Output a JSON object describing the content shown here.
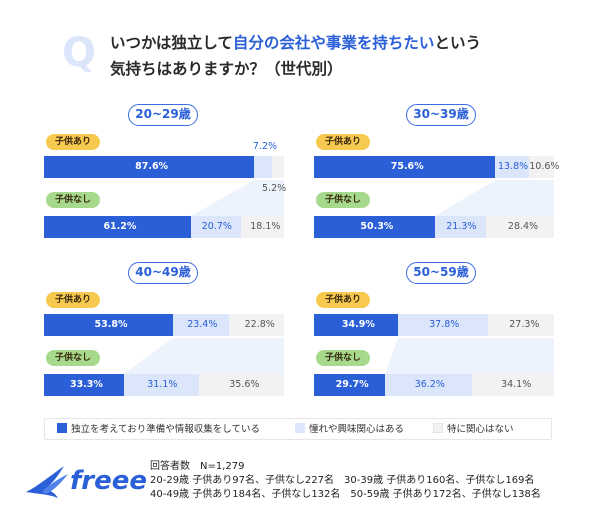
{
  "header": {
    "q_letter": "Q",
    "title_part1": "いつかは独立して",
    "title_highlight": "自分の会社や事業を持ちたい",
    "title_part2": "という",
    "title_line2": "気持ちはありますか？（世代別）"
  },
  "tags": {
    "with_children": "子供あり",
    "without_children": "子供なし"
  },
  "legend": {
    "items": [
      {
        "label": "独立を考えており準備や情報収集をしている",
        "color": "#2a5fd8"
      },
      {
        "label": "憧れや興味関心はある",
        "color": "#dbe6fb"
      },
      {
        "label": "特に関心はない",
        "color": "#f2f2f2"
      }
    ]
  },
  "footer": {
    "line1": "回答者数　N=1,279",
    "line2": "20-29歳 子供あり97名、子供なし227名　30-39歳 子供あり160名、子供なし169名",
    "line3": "40-49歳 子供あり184名、子供なし132名　50-59歳 子供あり172名、子供なし138名"
  },
  "logo": {
    "text": "freee"
  },
  "colors": {
    "dark": "#2a5fd8",
    "light": "#dbe6fb",
    "grey": "#f2f2f2"
  },
  "chart_data": [
    {
      "type": "bar",
      "subtype": "stacked-horizontal-100",
      "title": "20~29歳",
      "categories": [
        "子供あり",
        "子供なし"
      ],
      "series": [
        {
          "name": "独立を考えており準備や情報収集をしている",
          "values": [
            87.6,
            61.2
          ]
        },
        {
          "name": "憧れや興味関心はある",
          "values": [
            7.2,
            20.7
          ]
        },
        {
          "name": "特に関心はない",
          "values": [
            5.2,
            18.1
          ]
        }
      ],
      "labels": [
        [
          "87.6%",
          "7.2%",
          "5.2%"
        ],
        [
          "61.2%",
          "20.7%",
          "18.1%"
        ]
      ]
    },
    {
      "type": "bar",
      "subtype": "stacked-horizontal-100",
      "title": "30~39歳",
      "categories": [
        "子供あり",
        "子供なし"
      ],
      "series": [
        {
          "name": "独立を考えており準備や情報収集をしている",
          "values": [
            75.6,
            50.3
          ]
        },
        {
          "name": "憧れや興味関心はある",
          "values": [
            13.8,
            21.3
          ]
        },
        {
          "name": "特に関心はない",
          "values": [
            10.6,
            28.4
          ]
        }
      ],
      "labels": [
        [
          "75.6%",
          "13.8%",
          "10.6%"
        ],
        [
          "50.3%",
          "21.3%",
          "28.4%"
        ]
      ]
    },
    {
      "type": "bar",
      "subtype": "stacked-horizontal-100",
      "title": "40~49歳",
      "categories": [
        "子供あり",
        "子供なし"
      ],
      "series": [
        {
          "name": "独立を考えており準備や情報収集をしている",
          "values": [
            53.8,
            33.3
          ]
        },
        {
          "name": "憧れや興味関心はある",
          "values": [
            23.4,
            31.1
          ]
        },
        {
          "name": "特に関心はない",
          "values": [
            22.8,
            35.6
          ]
        }
      ],
      "labels": [
        [
          "53.8%",
          "23.4%",
          "22.8%"
        ],
        [
          "33.3%",
          "31.1%",
          "35.6%"
        ]
      ]
    },
    {
      "type": "bar",
      "subtype": "stacked-horizontal-100",
      "title": "50~59歳",
      "categories": [
        "子供あり",
        "子供なし"
      ],
      "series": [
        {
          "name": "独立を考えており準備や情報収集をしている",
          "values": [
            34.9,
            29.7
          ]
        },
        {
          "name": "憧れや興味関心はある",
          "values": [
            37.8,
            36.2
          ]
        },
        {
          "name": "特に関心はない",
          "values": [
            27.3,
            34.1
          ]
        }
      ],
      "labels": [
        [
          "34.9%",
          "37.8%",
          "27.3%"
        ],
        [
          "29.7%",
          "36.2%",
          "34.1%"
        ]
      ]
    }
  ]
}
